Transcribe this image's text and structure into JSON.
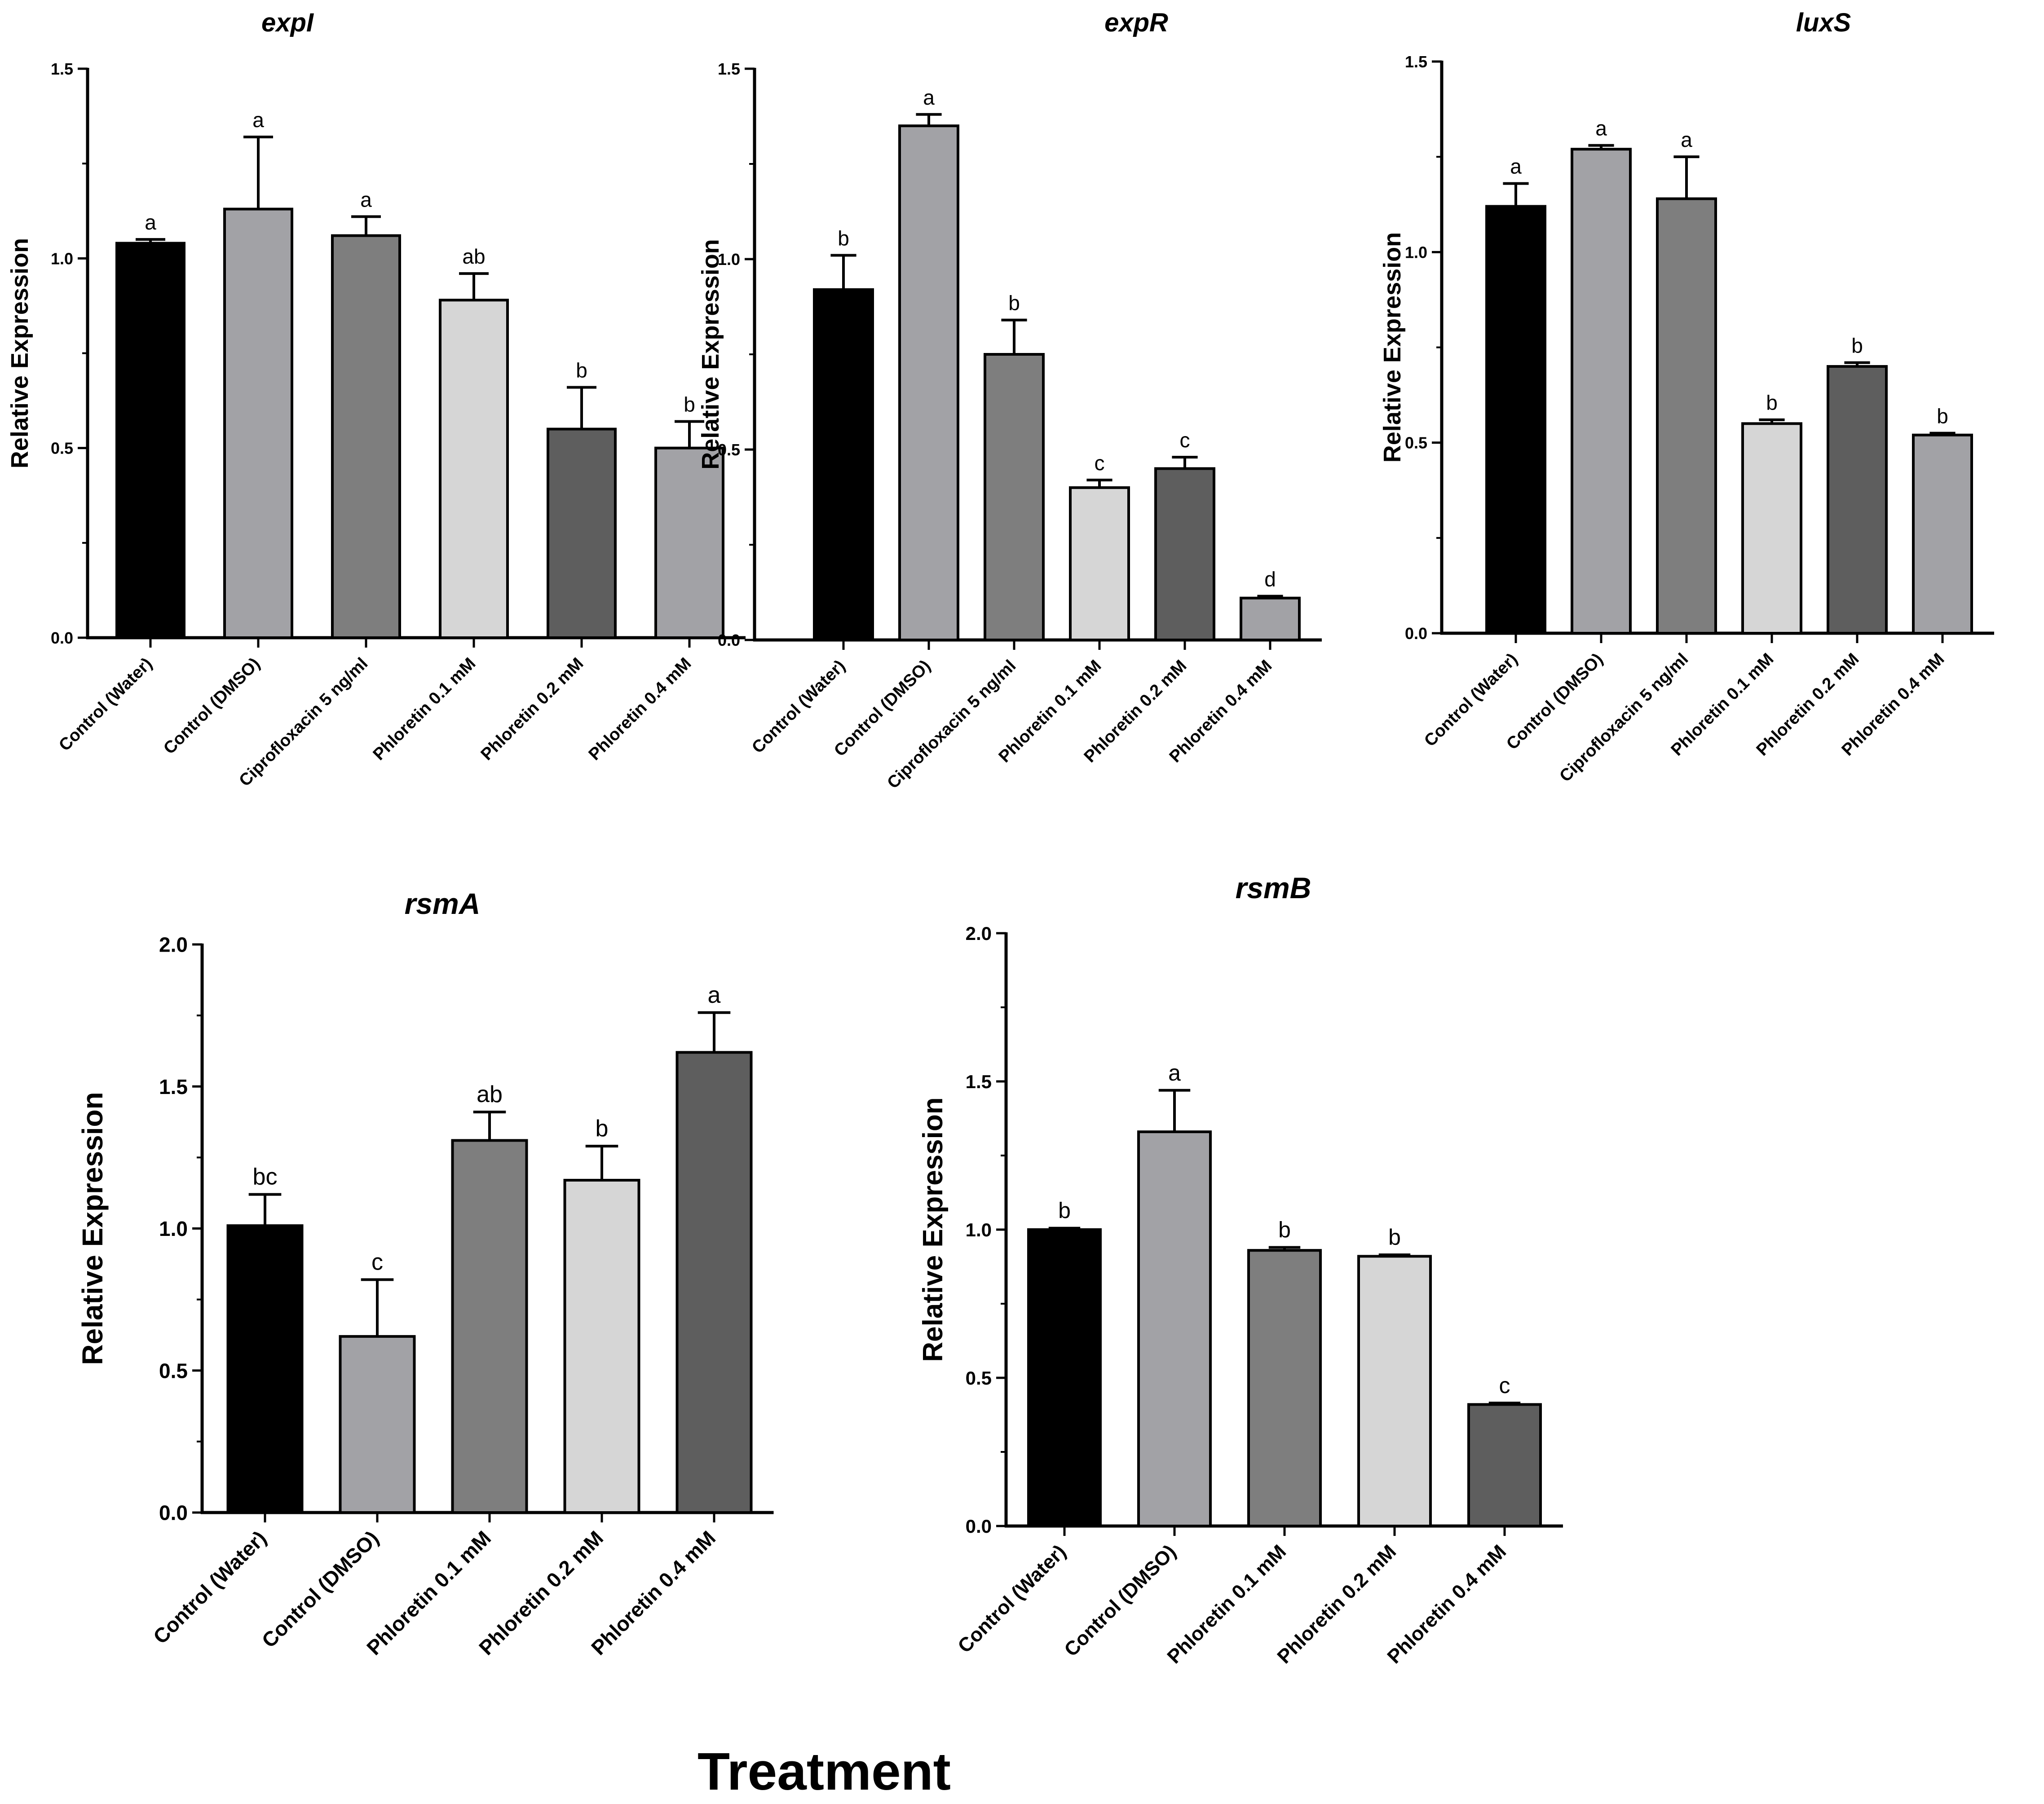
{
  "figure": {
    "xlabel": "Treatment"
  },
  "chart_data": [
    {
      "type": "bar",
      "title": "expI",
      "ylabel": "Relative Expression",
      "xlabel": "",
      "ylim": [
        0,
        1.5
      ],
      "yticks": [
        "0.0",
        "0.5",
        "1.0",
        "1.5"
      ],
      "categories": [
        "Control (Water)",
        "Control (DMSO)",
        "Ciprofloxacin 5 ng/ml",
        "Phloretin 0.1 mM",
        "Phloretin 0.2 mM",
        "Phloretin 0.4 mM"
      ],
      "values": [
        1.04,
        1.13,
        1.06,
        0.89,
        0.55,
        0.5
      ],
      "errors": [
        0.01,
        0.19,
        0.05,
        0.07,
        0.11,
        0.07
      ],
      "labels": [
        "a",
        "a",
        "a",
        "ab",
        "b",
        "b"
      ],
      "colors": [
        "#000000",
        "#a2a2a6",
        "#7e7e7e",
        "#d6d6d6",
        "#5e5e5e",
        "#a2a2a6"
      ]
    },
    {
      "type": "bar",
      "title": "expR",
      "ylabel": "Relative Expression",
      "xlabel": "",
      "ylim": [
        0,
        1.5
      ],
      "yticks": [
        "0.0",
        "0.5",
        "1.0",
        "1.5"
      ],
      "categories": [
        "Control (Water)",
        "Control (DMSO)",
        "Ciprofloxacin 5 ng/ml",
        "Phloretin 0.1 mM",
        "Phloretin 0.2 mM",
        "Phloretin 0.4 mM"
      ],
      "values": [
        0.92,
        1.35,
        0.75,
        0.4,
        0.45,
        0.11
      ],
      "errors": [
        0.09,
        0.03,
        0.09,
        0.02,
        0.03,
        0.005
      ],
      "labels": [
        "b",
        "a",
        "b",
        "c",
        "c",
        "d"
      ],
      "colors": [
        "#000000",
        "#a2a2a6",
        "#7e7e7e",
        "#d6d6d6",
        "#5e5e5e",
        "#a2a2a6"
      ]
    },
    {
      "type": "bar",
      "title": "luxS",
      "ylabel": "Relative Expression",
      "xlabel": "",
      "ylim": [
        0,
        1.5
      ],
      "yticks": [
        "0.0",
        "0.5",
        "1.0",
        "1.5"
      ],
      "categories": [
        "Control (Water)",
        "Control (DMSO)",
        "Ciprofloxacin 5 ng/ml",
        "Phloretin 0.1 mM",
        "Phloretin 0.2 mM",
        "Phloretin 0.4 mM"
      ],
      "values": [
        1.12,
        1.27,
        1.14,
        0.55,
        0.7,
        0.52
      ],
      "errors": [
        0.06,
        0.01,
        0.11,
        0.01,
        0.01,
        0.005
      ],
      "labels": [
        "a",
        "a",
        "a",
        "b",
        "b",
        "b"
      ],
      "colors": [
        "#000000",
        "#a2a2a6",
        "#7e7e7e",
        "#d6d6d6",
        "#5e5e5e",
        "#a2a2a6"
      ]
    },
    {
      "type": "bar",
      "title": "rsmA",
      "ylabel": "Relative Expression",
      "xlabel": "",
      "ylim": [
        0,
        2.0
      ],
      "yticks": [
        "0.0",
        "0.5",
        "1.0",
        "1.5",
        "2.0"
      ],
      "categories": [
        "Control (Water)",
        "Control (DMSO)",
        "Phloretin 0.1 mM",
        "Phloretin 0.2 mM",
        "Phloretin 0.4 mM"
      ],
      "values": [
        1.01,
        0.62,
        1.31,
        1.17,
        1.62
      ],
      "errors": [
        0.11,
        0.2,
        0.1,
        0.12,
        0.14
      ],
      "labels": [
        "bc",
        "c",
        "ab",
        "b",
        "a"
      ],
      "colors": [
        "#000000",
        "#a2a2a6",
        "#7e7e7e",
        "#d6d6d6",
        "#5e5e5e"
      ]
    },
    {
      "type": "bar",
      "title": "rsmB",
      "ylabel": "Relative Expression",
      "xlabel": "",
      "ylim": [
        0,
        2.0
      ],
      "yticks": [
        "0.0",
        "0.5",
        "1.0",
        "1.5",
        "2.0"
      ],
      "categories": [
        "Control (Water)",
        "Control (DMSO)",
        "Phloretin 0.1 mM",
        "Phloretin 0.2 mM",
        "Phloretin 0.4 mM"
      ],
      "values": [
        1.0,
        1.33,
        0.93,
        0.91,
        0.41
      ],
      "errors": [
        0.005,
        0.14,
        0.01,
        0.005,
        0.005
      ],
      "labels": [
        "b",
        "a",
        "b",
        "b",
        "c"
      ],
      "colors": [
        "#000000",
        "#a2a2a6",
        "#7e7e7e",
        "#d6d6d6",
        "#5e5e5e"
      ]
    }
  ]
}
